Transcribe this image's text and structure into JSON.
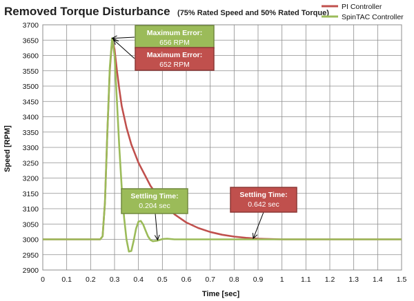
{
  "chart_data": {
    "type": "line",
    "title": "Removed Torque Disturbance",
    "subtitle": "(75% Rated Speed and 50% Rated Torque)",
    "xlabel": "Time [sec]",
    "ylabel": "Speed [RPM]",
    "xlim": [
      0,
      1.5
    ],
    "ylim": [
      2900,
      3700
    ],
    "x_ticks": [
      0,
      0.1,
      0.2,
      0.3,
      0.4,
      0.5,
      0.6,
      0.7,
      0.8,
      0.9,
      1,
      1.1,
      1.2,
      1.3,
      1.4,
      1.5
    ],
    "y_ticks": [
      2900,
      2950,
      3000,
      3050,
      3100,
      3150,
      3200,
      3250,
      3300,
      3350,
      3400,
      3450,
      3500,
      3550,
      3600,
      3650,
      3700
    ],
    "grid": true,
    "legend_position": "top-right",
    "series": [
      {
        "name": "PI Controller",
        "color": "#c0504d",
        "points": [
          [
            0,
            3000
          ],
          [
            0.24,
            3000
          ],
          [
            0.25,
            3010
          ],
          [
            0.26,
            3120
          ],
          [
            0.27,
            3350
          ],
          [
            0.28,
            3550
          ],
          [
            0.29,
            3652
          ],
          [
            0.3,
            3620
          ],
          [
            0.31,
            3550
          ],
          [
            0.32,
            3490
          ],
          [
            0.33,
            3435
          ],
          [
            0.35,
            3365
          ],
          [
            0.37,
            3310
          ],
          [
            0.4,
            3250
          ],
          [
            0.45,
            3175
          ],
          [
            0.5,
            3120
          ],
          [
            0.55,
            3082
          ],
          [
            0.6,
            3055
          ],
          [
            0.65,
            3037
          ],
          [
            0.7,
            3024
          ],
          [
            0.75,
            3015
          ],
          [
            0.8,
            3009
          ],
          [
            0.85,
            3005
          ],
          [
            0.9,
            3002
          ],
          [
            0.95,
            3001
          ],
          [
            1.0,
            3000
          ],
          [
            1.5,
            3000
          ]
        ]
      },
      {
        "name": "SpinTAC Controller",
        "color": "#9bbb59",
        "points": [
          [
            0,
            3000
          ],
          [
            0.24,
            3000
          ],
          [
            0.25,
            3010
          ],
          [
            0.26,
            3120
          ],
          [
            0.27,
            3350
          ],
          [
            0.28,
            3560
          ],
          [
            0.29,
            3656
          ],
          [
            0.3,
            3600
          ],
          [
            0.31,
            3450
          ],
          [
            0.32,
            3300
          ],
          [
            0.33,
            3170
          ],
          [
            0.34,
            3070
          ],
          [
            0.35,
            3000
          ],
          [
            0.36,
            2960
          ],
          [
            0.37,
            2962
          ],
          [
            0.38,
            2995
          ],
          [
            0.39,
            3035
          ],
          [
            0.4,
            3058
          ],
          [
            0.41,
            3060
          ],
          [
            0.42,
            3048
          ],
          [
            0.43,
            3028
          ],
          [
            0.44,
            3010
          ],
          [
            0.45,
            2998
          ],
          [
            0.46,
            2994
          ],
          [
            0.48,
            2996
          ],
          [
            0.5,
            3001
          ],
          [
            0.52,
            3002
          ],
          [
            0.55,
            3000
          ],
          [
            1.5,
            3000
          ]
        ]
      }
    ],
    "annotations": [
      {
        "series": "SpinTAC Controller",
        "label": "Maximum Error:",
        "value": "656 RPM",
        "point": [
          0.29,
          3656
        ]
      },
      {
        "series": "PI Controller",
        "label": "Maximum Error:",
        "value": "652 RPM",
        "point": [
          0.295,
          3652
        ]
      },
      {
        "series": "SpinTAC Controller",
        "label": "Settling Time:",
        "value": "0.204 sec",
        "point": [
          0.48,
          2998
        ]
      },
      {
        "series": "PI Controller",
        "label": "Settling Time:",
        "value": "0.642 sec",
        "point": [
          0.88,
          3003
        ]
      }
    ]
  }
}
